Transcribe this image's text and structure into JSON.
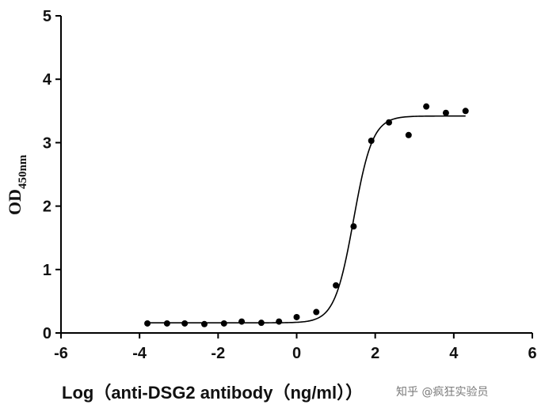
{
  "chart_data": {
    "type": "scatter",
    "xlabel": "Log（anti-DSG2 antibody（ng/ml））",
    "ylabel": "OD",
    "ylabel_subscript": "450nm",
    "xlim": [
      -6,
      6
    ],
    "ylim": [
      0,
      5
    ],
    "xticks": [
      -6,
      -4,
      -2,
      0,
      2,
      4,
      6
    ],
    "yticks": [
      0,
      1,
      2,
      3,
      4,
      5
    ],
    "xtick_labels": [
      "-6",
      "-4",
      "-2",
      "0",
      "2",
      "4",
      "6"
    ],
    "ytick_labels": [
      "0",
      "1",
      "2",
      "3",
      "4",
      "5"
    ],
    "grid": false,
    "series": [
      {
        "kind": "points",
        "x": [
          -3.8,
          -3.3,
          -2.85,
          -2.35,
          -1.85,
          -1.4,
          -0.9,
          -0.45,
          0.0,
          0.5,
          1.0,
          1.45,
          1.9,
          2.35,
          2.85,
          3.3,
          3.8,
          4.3
        ],
        "y": [
          0.15,
          0.15,
          0.15,
          0.14,
          0.15,
          0.18,
          0.16,
          0.18,
          0.25,
          0.33,
          0.75,
          1.68,
          3.03,
          3.32,
          3.12,
          3.57,
          3.47,
          3.5
        ],
        "color": "#000000"
      },
      {
        "kind": "fit",
        "model": "4PL",
        "bottom": 0.16,
        "top": 3.42,
        "logEC50": 1.45,
        "hillslope": 1.8,
        "x_range": [
          -3.8,
          4.3
        ],
        "color": "#000000"
      }
    ]
  },
  "watermark": "知乎 @疯狂实验员"
}
